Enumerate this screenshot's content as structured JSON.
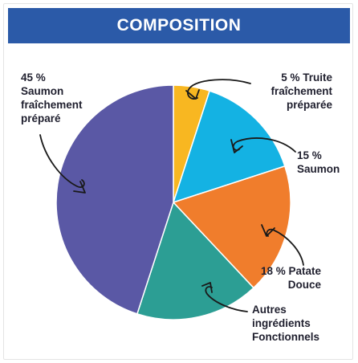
{
  "header": {
    "title": "COMPOSITION"
  },
  "chart_data": {
    "type": "pie",
    "title": "COMPOSITION",
    "slices": [
      {
        "label": "Truite fraîchement préparée",
        "value": 5,
        "color": "#f8b721",
        "label_lines": [
          "5 % Truite",
          "fraîchement",
          "préparée"
        ]
      },
      {
        "label": "Saumon",
        "value": 15,
        "color": "#14b2e3",
        "label_lines": [
          "15 %",
          "Saumon"
        ]
      },
      {
        "label": "Patate Douce",
        "value": 18,
        "color": "#f07d2c",
        "label_lines": [
          "18 % Patate",
          "Douce"
        ]
      },
      {
        "label": "Autres ingrédients Fonctionnels",
        "value": 17,
        "color": "#2c9e94",
        "label_lines": [
          "Autres",
          "ingrédients",
          "Fonctionnels"
        ]
      },
      {
        "label": "Saumon fraîchement préparé",
        "value": 45,
        "color": "#5a58a5",
        "label_lines": [
          "45 %",
          "Saumon",
          "fraîchement",
          "préparé"
        ]
      }
    ],
    "start_angle_deg": 0,
    "direction": "clockwise",
    "legend": "none"
  }
}
